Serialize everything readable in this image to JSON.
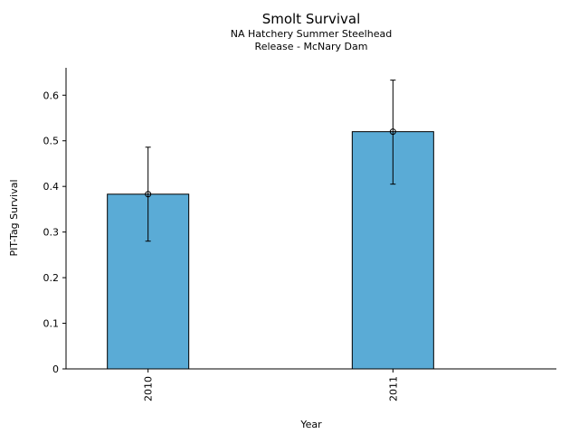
{
  "chart_data": {
    "type": "bar",
    "title": "Smolt Survival",
    "subtitle_lines": [
      "NA Hatchery Summer Steelhead",
      "Release - McNary Dam"
    ],
    "xlabel": "Year",
    "ylabel": "PIT-Tag Survival",
    "categories": [
      "2010",
      "2011"
    ],
    "values": [
      0.383,
      0.52
    ],
    "error_low": [
      0.28,
      0.405
    ],
    "error_high": [
      0.486,
      0.633
    ],
    "ylim": [
      0,
      0.66
    ],
    "yticks": [
      0,
      0.1,
      0.2,
      0.3,
      0.4,
      0.5,
      0.6
    ],
    "ytick_labels": [
      "0",
      "0.1",
      "0.2",
      "0.3",
      "0.4",
      "0.5",
      "0.6"
    ],
    "x_tick_rotation": "vertical",
    "grid": false,
    "legend": "none",
    "colors": {
      "bar_fill": "#5aabd6",
      "bar_edge": "#000000",
      "error_bar": "#000000",
      "axis": "#000000"
    }
  }
}
